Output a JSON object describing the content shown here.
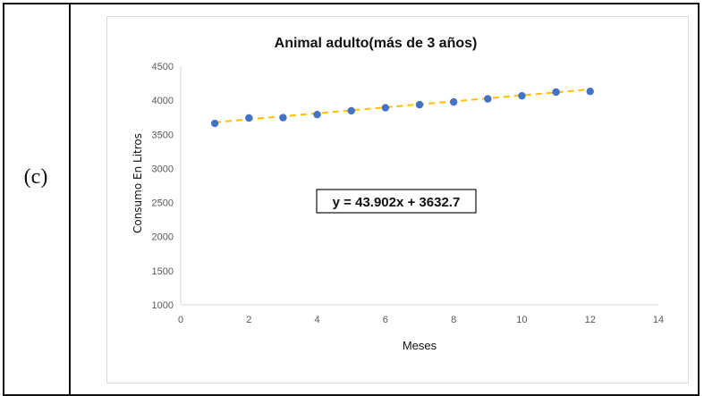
{
  "row_label": "(c)",
  "chart_data": {
    "type": "scatter",
    "title": "Animal adulto(más de 3 años)",
    "xlabel": "Meses",
    "ylabel": "Consumo En Litros",
    "xlim": [
      0,
      14
    ],
    "ylim": [
      1000,
      4500
    ],
    "xticks": [
      0,
      2,
      4,
      6,
      8,
      10,
      12,
      14
    ],
    "yticks": [
      1000,
      1500,
      2000,
      2500,
      3000,
      3500,
      4000,
      4500
    ],
    "grid": false,
    "points": [
      {
        "x": 1,
        "y": 3660
      },
      {
        "x": 2,
        "y": 3740
      },
      {
        "x": 3,
        "y": 3745
      },
      {
        "x": 4,
        "y": 3790
      },
      {
        "x": 5,
        "y": 3845
      },
      {
        "x": 6,
        "y": 3890
      },
      {
        "x": 7,
        "y": 3935
      },
      {
        "x": 8,
        "y": 3975
      },
      {
        "x": 9,
        "y": 4020
      },
      {
        "x": 10,
        "y": 4065
      },
      {
        "x": 11,
        "y": 4120
      },
      {
        "x": 12,
        "y": 4130
      }
    ],
    "trendline": {
      "slope": 43.902,
      "intercept": 3632.7,
      "x_range": [
        1,
        12
      ]
    },
    "equation_label": "y = 43.902x + 3632.7",
    "colors": {
      "points": "#4472c4",
      "trendline": "#ffc000",
      "axis": "#d9d9d9",
      "text": "#595959"
    }
  }
}
